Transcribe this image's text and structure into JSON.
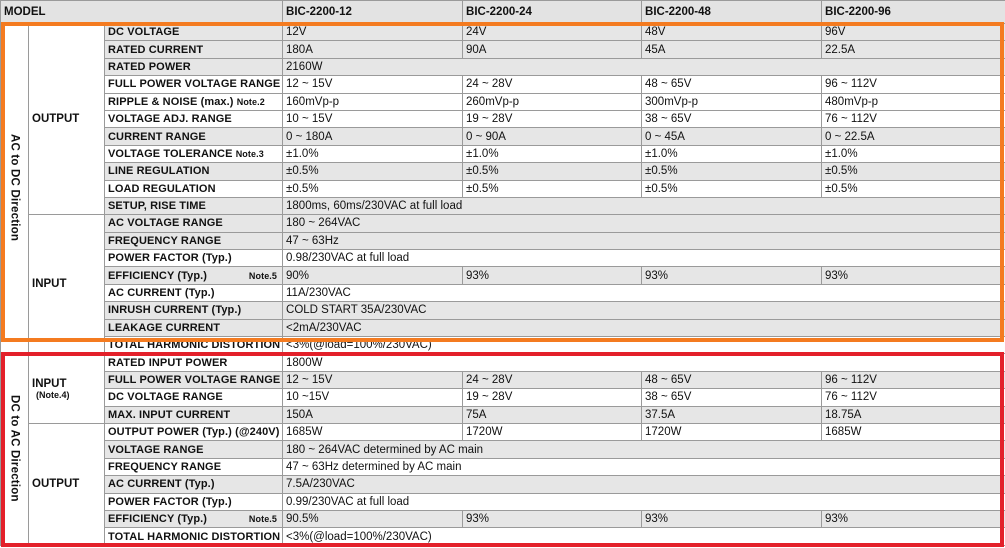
{
  "header": {
    "model_label": "MODEL",
    "models": [
      "BIC-2200-12",
      "BIC-2200-24",
      "BIC-2200-48",
      "BIC-2200-96"
    ]
  },
  "ac_dc": {
    "direction_label": "AC to DC Direction",
    "output": {
      "group_label": "OUTPUT",
      "dc_voltage": {
        "label": "DC VOLTAGE",
        "values": [
          "12V",
          "24V",
          "48V",
          "96V"
        ]
      },
      "rated_current": {
        "label": "RATED CURRENT",
        "values": [
          "180A",
          "90A",
          "45A",
          "22.5A"
        ]
      },
      "rated_power": {
        "label": "RATED POWER",
        "value": "2160W"
      },
      "full_power_voltage_range": {
        "label": "FULL POWER VOLTAGE RANGE",
        "values": [
          "12 ~ 15V",
          "24 ~ 28V",
          "48 ~ 65V",
          "96 ~ 112V"
        ]
      },
      "ripple_noise": {
        "label": "RIPPLE & NOISE (max.)",
        "note": "Note.2",
        "values": [
          "160mVp-p",
          "260mVp-p",
          "300mVp-p",
          "480mVp-p"
        ]
      },
      "voltage_adj_range": {
        "label": "VOLTAGE ADJ. RANGE",
        "values": [
          "10 ~ 15V",
          "19 ~ 28V",
          "38 ~ 65V",
          "76 ~ 112V"
        ]
      },
      "current_range": {
        "label": "CURRENT RANGE",
        "values": [
          "0 ~ 180A",
          "0 ~ 90A",
          "0 ~ 45A",
          "0 ~ 22.5A"
        ]
      },
      "voltage_tolerance": {
        "label": "VOLTAGE TOLERANCE",
        "note": "Note.3",
        "values": [
          "±1.0%",
          "±1.0%",
          "±1.0%",
          "±1.0%"
        ]
      },
      "line_regulation": {
        "label": "LINE REGULATION",
        "values": [
          "±0.5%",
          "±0.5%",
          "±0.5%",
          "±0.5%"
        ]
      },
      "load_regulation": {
        "label": "LOAD REGULATION",
        "values": [
          "±0.5%",
          "±0.5%",
          "±0.5%",
          "±0.5%"
        ]
      },
      "setup_rise_time": {
        "label": "SETUP, RISE TIME",
        "value": "1800ms, 60ms/230VAC at full load"
      }
    },
    "input": {
      "group_label": "INPUT",
      "ac_voltage_range": {
        "label": "AC VOLTAGE RANGE",
        "value": "180 ~ 264VAC"
      },
      "frequency_range": {
        "label": "FREQUENCY RANGE",
        "value": "47 ~ 63Hz"
      },
      "power_factor": {
        "label": "POWER FACTOR (Typ.)",
        "value": "0.98/230VAC at full load"
      },
      "efficiency": {
        "label": "EFFICIENCY (Typ.)",
        "note": "Note.5",
        "values": [
          "90%",
          "93%",
          "93%",
          "93%"
        ]
      },
      "ac_current": {
        "label": "AC CURRENT (Typ.)",
        "value": "11A/230VAC"
      },
      "inrush_current": {
        "label": "INRUSH CURRENT (Typ.)",
        "value": "COLD START 35A/230VAC"
      },
      "leakage_current": {
        "label": "LEAKAGE CURRENT",
        "value": "<2mA/230VAC"
      },
      "total_harmonic_distortion": {
        "label": "TOTAL HARMONIC DISTORTION",
        "value": "<3%(@load=100%/230VAC)"
      }
    }
  },
  "dc_ac": {
    "direction_label": "DC to AC Direction",
    "input": {
      "group_label": "INPUT",
      "group_note": "(Note.4)",
      "rated_input_power": {
        "label": "RATED INPUT POWER",
        "value": "1800W"
      },
      "full_power_voltage_range": {
        "label": "FULL POWER VOLTAGE RANGE",
        "values": [
          "12 ~ 15V",
          "24 ~ 28V",
          "48 ~ 65V",
          "96 ~ 112V"
        ]
      },
      "dc_voltage_range": {
        "label": "DC VOLTAGE RANGE",
        "values": [
          "10 ~15V",
          "19 ~ 28V",
          "38 ~ 65V",
          "76 ~ 112V"
        ]
      },
      "max_input_current": {
        "label": "MAX. INPUT CURRENT",
        "values": [
          "150A",
          "75A",
          "37.5A",
          "18.75A"
        ]
      }
    },
    "output": {
      "group_label": "OUTPUT",
      "output_power": {
        "label": "OUTPUT POWER (Typ.) (@240V)",
        "values": [
          "1685W",
          "1720W",
          "1720W",
          "1685W"
        ]
      },
      "voltage_range": {
        "label": "VOLTAGE RANGE",
        "value": "180 ~ 264VAC determined by AC main"
      },
      "frequency_range": {
        "label": "FREQUENCY RANGE",
        "value": "47 ~ 63Hz determined by AC main"
      },
      "ac_current": {
        "label": "AC CURRENT (Typ.)",
        "value": "7.5A/230VAC"
      },
      "power_factor": {
        "label": "POWER FACTOR (Typ.)",
        "value": "0.99/230VAC at full load"
      },
      "efficiency": {
        "label": "EFFICIENCY (Typ.)",
        "note": "Note.5",
        "values": [
          "90.5%",
          "93%",
          "93%",
          "93%"
        ]
      },
      "total_harmonic_distortion": {
        "label": "TOTAL HARMONIC DISTORTION",
        "value": "<3%(@load=100%/230VAC)"
      }
    }
  },
  "colors": {
    "orange_frame": "#f47b20",
    "red_frame": "#e3202a",
    "shaded_row": "#e6e6e6"
  }
}
